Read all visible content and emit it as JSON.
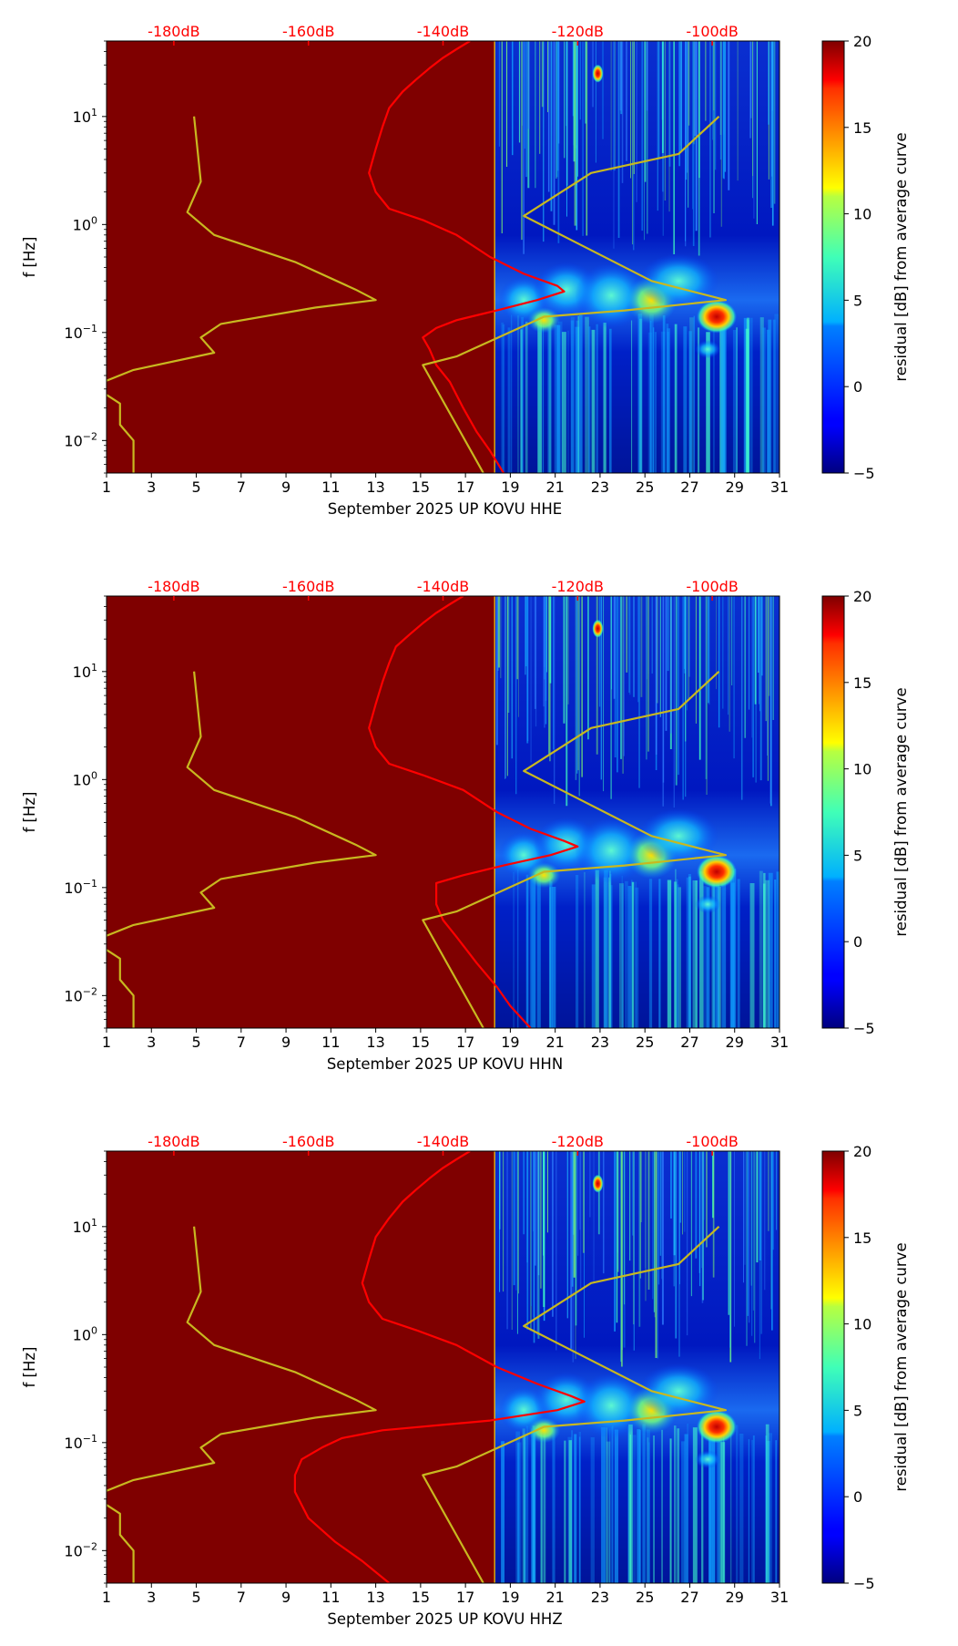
{
  "chart_data": [
    {
      "type": "heatmap",
      "xlabel": "September 2025 UP KOVU  HHE",
      "ylabel": "f [Hz]",
      "x_ticks": [
        1,
        3,
        5,
        7,
        9,
        11,
        13,
        15,
        17,
        19,
        21,
        23,
        25,
        27,
        29,
        31
      ],
      "xlim": [
        1,
        31
      ],
      "ylim": [
        0.005,
        50
      ],
      "yscale": "log",
      "y_ticks": [
        {
          "value": 0.01,
          "base": "10",
          "exp": "−2"
        },
        {
          "value": 0.1,
          "base": "10",
          "exp": "−1"
        },
        {
          "value": 1,
          "base": "10",
          "exp": "0"
        },
        {
          "value": 10,
          "base": "10",
          "exp": "1"
        }
      ],
      "top_axis": {
        "labels": [
          "-180dB",
          "-160dB",
          "-140dB",
          "-120dB",
          "-100dB"
        ],
        "values": [
          -180,
          -160,
          -140,
          -120,
          -100
        ],
        "range": [
          -190,
          -90
        ],
        "color": "#ff0000"
      },
      "colorbar": {
        "label": "residual [dB] from average curve",
        "ticks": [
          -5,
          0,
          5,
          10,
          15,
          20
        ],
        "range": [
          -5,
          20
        ],
        "colormap": "jet"
      },
      "data_start_day": 18.3,
      "fill_color_before_data": "#7f0000",
      "series": [
        {
          "name": "",
          "color": "#ff0000",
          "axis": "top-dB",
          "points": [
            [
              -136,
              50
            ],
            [
              -138,
              42
            ],
            [
              -140,
              35
            ],
            [
              -142,
              28
            ],
            [
              -144,
              22
            ],
            [
              -146,
              17
            ],
            [
              -148,
              12
            ],
            [
              -149,
              8
            ],
            [
              -150,
              5
            ],
            [
              -151,
              3
            ],
            [
              -150,
              2
            ],
            [
              -148,
              1.4
            ],
            [
              -143,
              1.1
            ],
            [
              -138,
              0.8
            ],
            [
              -133,
              0.5
            ],
            [
              -128,
              0.35
            ],
            [
              -123,
              0.27
            ],
            [
              -122,
              0.24
            ],
            [
              -126,
              0.2
            ],
            [
              -132,
              0.16
            ],
            [
              -138,
              0.13
            ],
            [
              -141,
              0.11
            ],
            [
              -143,
              0.09
            ],
            [
              -142,
              0.07
            ],
            [
              -141,
              0.05
            ],
            [
              -139,
              0.035
            ],
            [
              -137,
              0.02
            ],
            [
              -135,
              0.012
            ],
            [
              -133,
              0.008
            ],
            [
              -131,
              0.005
            ]
          ]
        },
        {
          "name": "",
          "color": "#c8b820",
          "axis": "top-dB",
          "points": [
            [
              -177,
              10
            ],
            [
              -176,
              2.5
            ],
            [
              -178,
              1.3
            ],
            [
              -174,
              0.8
            ],
            [
              -162,
              0.45
            ],
            [
              -153,
              0.25
            ],
            [
              -150,
              0.2
            ],
            [
              -159,
              0.17
            ],
            [
              -173,
              0.12
            ],
            [
              -176,
              0.09
            ],
            [
              -174,
              0.065
            ],
            [
              -186,
              0.045
            ],
            [
              -192,
              0.032
            ],
            [
              -188,
              0.022
            ],
            [
              -188,
              0.014
            ],
            [
              -186,
              0.01
            ],
            [
              -186,
              0.005
            ]
          ]
        },
        {
          "name": "",
          "color": "#c8b820",
          "axis": "top-dB",
          "points": [
            [
              -99,
              10
            ],
            [
              -105,
              4.5
            ],
            [
              -118,
              3
            ],
            [
              -128,
              1.2
            ],
            [
              -109,
              0.3
            ],
            [
              -98,
              0.2
            ],
            [
              -113,
              0.16
            ],
            [
              -125,
              0.14
            ],
            [
              -138,
              0.06
            ],
            [
              -143,
              0.05
            ],
            [
              -134,
              0.005
            ]
          ]
        }
      ]
    },
    {
      "type": "heatmap",
      "xlabel": "September 2025 UP KOVU  HHN",
      "ylabel": "f [Hz]",
      "x_ticks": [
        1,
        3,
        5,
        7,
        9,
        11,
        13,
        15,
        17,
        19,
        21,
        23,
        25,
        27,
        29,
        31
      ],
      "xlim": [
        1,
        31
      ],
      "ylim": [
        0.005,
        50
      ],
      "yscale": "log",
      "y_ticks": [
        {
          "value": 0.01,
          "base": "10",
          "exp": "−2"
        },
        {
          "value": 0.1,
          "base": "10",
          "exp": "−1"
        },
        {
          "value": 1,
          "base": "10",
          "exp": "0"
        },
        {
          "value": 10,
          "base": "10",
          "exp": "1"
        }
      ],
      "top_axis": {
        "labels": [
          "-180dB",
          "-160dB",
          "-140dB",
          "-120dB",
          "-100dB"
        ],
        "values": [
          -180,
          -160,
          -140,
          -120,
          -100
        ],
        "range": [
          -190,
          -90
        ],
        "color": "#ff0000"
      },
      "colorbar": {
        "label": "residual [dB] from average curve",
        "ticks": [
          -5,
          0,
          5,
          10,
          15,
          20
        ],
        "range": [
          -5,
          20
        ],
        "colormap": "jet"
      },
      "data_start_day": 18.3,
      "fill_color_before_data": "#7f0000",
      "series": [
        {
          "name": "",
          "color": "#ff0000",
          "axis": "top-dB",
          "points": [
            [
              -137,
              50
            ],
            [
              -139,
              42
            ],
            [
              -141,
              35
            ],
            [
              -143,
              28
            ],
            [
              -145,
              22
            ],
            [
              -147,
              17
            ],
            [
              -148,
              12
            ],
            [
              -149,
              8
            ],
            [
              -150,
              5
            ],
            [
              -151,
              3
            ],
            [
              -150,
              2
            ],
            [
              -148,
              1.4
            ],
            [
              -143,
              1.1
            ],
            [
              -137,
              0.8
            ],
            [
              -132,
              0.5
            ],
            [
              -127,
              0.35
            ],
            [
              -122,
              0.27
            ],
            [
              -120,
              0.24
            ],
            [
              -124,
              0.2
            ],
            [
              -131,
              0.16
            ],
            [
              -137,
              0.13
            ],
            [
              -141,
              0.11
            ],
            [
              -141,
              0.09
            ],
            [
              -141,
              0.07
            ],
            [
              -140,
              0.05
            ],
            [
              -138,
              0.035
            ],
            [
              -135,
              0.02
            ],
            [
              -132,
              0.012
            ],
            [
              -130,
              0.008
            ],
            [
              -127,
              0.005
            ]
          ]
        },
        {
          "name": "",
          "color": "#c8b820",
          "axis": "top-dB",
          "points": [
            [
              -177,
              10
            ],
            [
              -176,
              2.5
            ],
            [
              -178,
              1.3
            ],
            [
              -174,
              0.8
            ],
            [
              -162,
              0.45
            ],
            [
              -153,
              0.25
            ],
            [
              -150,
              0.2
            ],
            [
              -159,
              0.17
            ],
            [
              -173,
              0.12
            ],
            [
              -176,
              0.09
            ],
            [
              -174,
              0.065
            ],
            [
              -186,
              0.045
            ],
            [
              -192,
              0.032
            ],
            [
              -188,
              0.022
            ],
            [
              -188,
              0.014
            ],
            [
              -186,
              0.01
            ],
            [
              -186,
              0.005
            ]
          ]
        },
        {
          "name": "",
          "color": "#c8b820",
          "axis": "top-dB",
          "points": [
            [
              -99,
              10
            ],
            [
              -105,
              4.5
            ],
            [
              -118,
              3
            ],
            [
              -128,
              1.2
            ],
            [
              -109,
              0.3
            ],
            [
              -98,
              0.2
            ],
            [
              -113,
              0.16
            ],
            [
              -125,
              0.14
            ],
            [
              -138,
              0.06
            ],
            [
              -143,
              0.05
            ],
            [
              -134,
              0.005
            ]
          ]
        }
      ]
    },
    {
      "type": "heatmap",
      "xlabel": "September 2025 UP KOVU  HHZ",
      "ylabel": "f [Hz]",
      "x_ticks": [
        1,
        3,
        5,
        7,
        9,
        11,
        13,
        15,
        17,
        19,
        21,
        23,
        25,
        27,
        29,
        31
      ],
      "xlim": [
        1,
        31
      ],
      "ylim": [
        0.005,
        50
      ],
      "yscale": "log",
      "y_ticks": [
        {
          "value": 0.01,
          "base": "10",
          "exp": "−2"
        },
        {
          "value": 0.1,
          "base": "10",
          "exp": "−1"
        },
        {
          "value": 1,
          "base": "10",
          "exp": "0"
        },
        {
          "value": 10,
          "base": "10",
          "exp": "1"
        }
      ],
      "top_axis": {
        "labels": [
          "-180dB",
          "-160dB",
          "-140dB",
          "-120dB",
          "-100dB"
        ],
        "values": [
          -180,
          -160,
          -140,
          -120,
          -100
        ],
        "range": [
          -190,
          -90
        ],
        "color": "#ff0000"
      },
      "colorbar": {
        "label": "residual [dB] from average curve",
        "ticks": [
          -5,
          0,
          5,
          10,
          15,
          20
        ],
        "range": [
          -5,
          20
        ],
        "colormap": "jet"
      },
      "data_start_day": 18.3,
      "fill_color_before_data": "#7f0000",
      "series": [
        {
          "name": "",
          "color": "#ff0000",
          "axis": "top-dB",
          "points": [
            [
              -136,
              50
            ],
            [
              -138,
              42
            ],
            [
              -140,
              35
            ],
            [
              -142,
              28
            ],
            [
              -144,
              22
            ],
            [
              -146,
              17
            ],
            [
              -148,
              12
            ],
            [
              -150,
              8
            ],
            [
              -151,
              5
            ],
            [
              -152,
              3
            ],
            [
              -151,
              2
            ],
            [
              -149,
              1.4
            ],
            [
              -144,
              1.1
            ],
            [
              -138,
              0.8
            ],
            [
              -132,
              0.5
            ],
            [
              -126,
              0.35
            ],
            [
              -121,
              0.27
            ],
            [
              -119,
              0.24
            ],
            [
              -123,
              0.2
            ],
            [
              -133,
              0.16
            ],
            [
              -149,
              0.13
            ],
            [
              -155,
              0.11
            ],
            [
              -158,
              0.09
            ],
            [
              -161,
              0.07
            ],
            [
              -162,
              0.05
            ],
            [
              -162,
              0.035
            ],
            [
              -160,
              0.02
            ],
            [
              -156,
              0.012
            ],
            [
              -152,
              0.008
            ],
            [
              -148,
              0.005
            ]
          ]
        },
        {
          "name": "",
          "color": "#c8b820",
          "axis": "top-dB",
          "points": [
            [
              -177,
              10
            ],
            [
              -176,
              2.5
            ],
            [
              -178,
              1.3
            ],
            [
              -174,
              0.8
            ],
            [
              -162,
              0.45
            ],
            [
              -153,
              0.25
            ],
            [
              -150,
              0.2
            ],
            [
              -159,
              0.17
            ],
            [
              -173,
              0.12
            ],
            [
              -176,
              0.09
            ],
            [
              -174,
              0.065
            ],
            [
              -186,
              0.045
            ],
            [
              -192,
              0.032
            ],
            [
              -188,
              0.022
            ],
            [
              -188,
              0.014
            ],
            [
              -186,
              0.01
            ],
            [
              -186,
              0.005
            ]
          ]
        },
        {
          "name": "",
          "color": "#c8b820",
          "axis": "top-dB",
          "points": [
            [
              -99,
              10
            ],
            [
              -105,
              4.5
            ],
            [
              -118,
              3
            ],
            [
              -128,
              1.2
            ],
            [
              -109,
              0.3
            ],
            [
              -98,
              0.2
            ],
            [
              -113,
              0.16
            ],
            [
              -125,
              0.14
            ],
            [
              -138,
              0.06
            ],
            [
              -143,
              0.05
            ],
            [
              -134,
              0.005
            ]
          ]
        }
      ]
    }
  ]
}
